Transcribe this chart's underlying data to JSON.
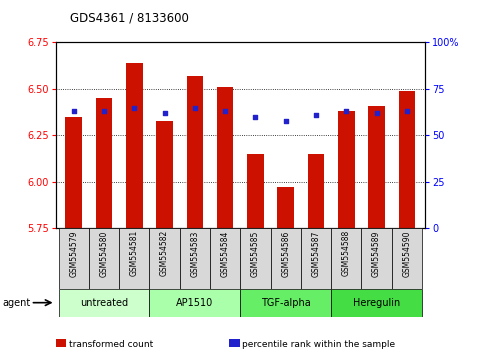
{
  "title": "GDS4361 / 8133600",
  "samples": [
    "GSM554579",
    "GSM554580",
    "GSM554581",
    "GSM554582",
    "GSM554583",
    "GSM554584",
    "GSM554585",
    "GSM554586",
    "GSM554587",
    "GSM554588",
    "GSM554589",
    "GSM554590"
  ],
  "red_values": [
    6.35,
    6.45,
    6.64,
    6.33,
    6.57,
    6.51,
    6.15,
    5.97,
    6.15,
    6.38,
    6.41,
    6.49
  ],
  "blue_values": [
    63,
    63,
    65,
    62,
    65,
    63,
    60,
    58,
    61,
    63,
    62,
    63
  ],
  "ylim_left": [
    5.75,
    6.75
  ],
  "ylim_right": [
    0,
    100
  ],
  "yticks_left": [
    5.75,
    6.0,
    6.25,
    6.5,
    6.75
  ],
  "yticks_right": [
    0,
    25,
    50,
    75,
    100
  ],
  "yticklabels_right": [
    "0",
    "25",
    "50",
    "75",
    "100%"
  ],
  "bar_color": "#cc1100",
  "dot_color": "#2222cc",
  "bar_bottom": 5.75,
  "groups": [
    {
      "label": "untreated",
      "start": 0,
      "end": 3,
      "color": "#ccffcc"
    },
    {
      "label": "AP1510",
      "start": 3,
      "end": 6,
      "color": "#aaffaa"
    },
    {
      "label": "TGF-alpha",
      "start": 6,
      "end": 9,
      "color": "#66ee66"
    },
    {
      "label": "Heregulin",
      "start": 9,
      "end": 12,
      "color": "#44dd44"
    }
  ],
  "agent_label": "agent",
  "legend_items": [
    {
      "color": "#cc1100",
      "label": "transformed count"
    },
    {
      "color": "#2222cc",
      "label": "percentile rank within the sample"
    }
  ],
  "grid_color": "#000000",
  "spine_color": "#000000",
  "bar_width": 0.55
}
